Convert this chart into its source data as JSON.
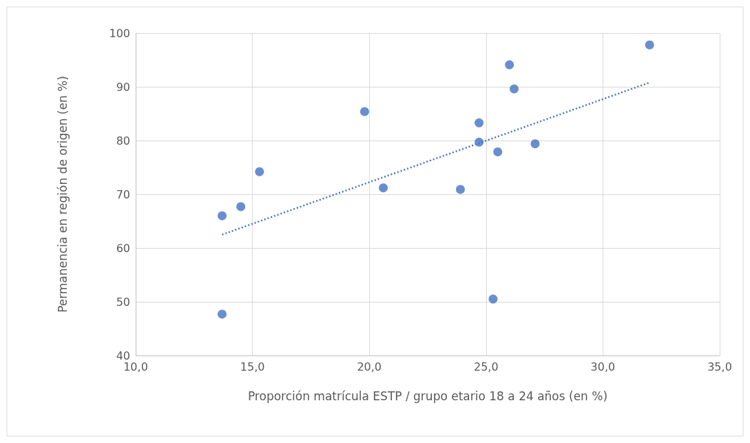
{
  "chart_data": {
    "type": "scatter",
    "xlabel": "Proporción matrícula ESTP / grupo etario 18 a 24 años (en %)",
    "ylabel": "Permanencia en región de origen (en %)",
    "xlim": [
      10,
      35
    ],
    "xticks": [
      {
        "value": 10,
        "label": "10,0"
      },
      {
        "value": 15,
        "label": "15,0"
      },
      {
        "value": 20,
        "label": "20,0"
      },
      {
        "value": 25,
        "label": "25,0"
      },
      {
        "value": 30,
        "label": "30,0"
      },
      {
        "value": 35,
        "label": "35,0"
      }
    ],
    "ylim": [
      40,
      100
    ],
    "yticks": [
      40,
      50,
      60,
      70,
      80,
      90,
      100
    ],
    "grid": true,
    "marker": "circle",
    "series": [
      {
        "color": "#4472c4",
        "x": [
          13.7,
          13.7,
          14.5,
          15.3,
          19.8,
          20.6,
          23.9,
          24.7,
          24.7,
          26.0,
          26.2,
          25.5,
          25.3,
          27.1,
          32.0
        ],
        "values": [
          66.0,
          47.7,
          67.7,
          74.2,
          85.4,
          71.2,
          70.9,
          83.3,
          79.7,
          94.1,
          89.6,
          77.9,
          50.5,
          79.4,
          97.8
        ]
      },
      {
        "type": "line",
        "color": "#4472c4",
        "line_style": "dotted",
        "marker": "none",
        "x": [
          13.7,
          32.0
        ],
        "values": [
          62.5,
          90.8
        ]
      }
    ]
  }
}
